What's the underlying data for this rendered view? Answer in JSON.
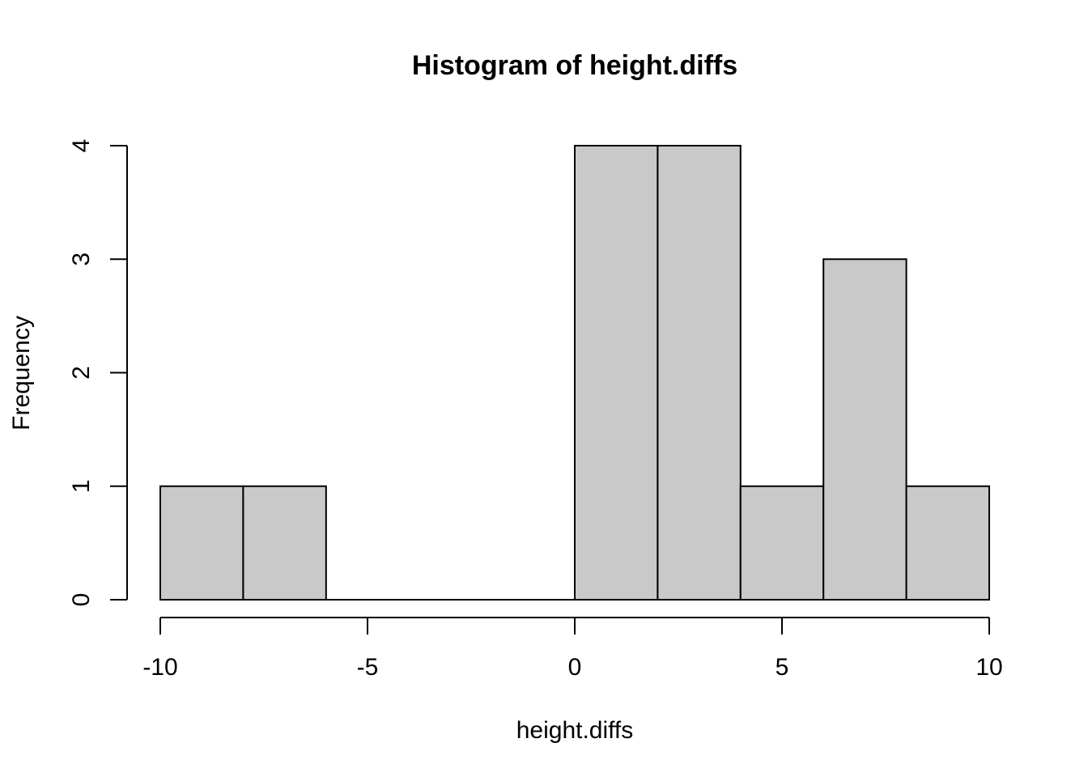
{
  "chart_data": {
    "type": "bar",
    "title": "Histogram of height.diffs",
    "xlabel": "height.diffs",
    "ylabel": "Frequency",
    "bins": [
      {
        "start": -10,
        "end": -8,
        "count": 1
      },
      {
        "start": -8,
        "end": -6,
        "count": 1
      },
      {
        "start": -6,
        "end": -4,
        "count": 0
      },
      {
        "start": -4,
        "end": -2,
        "count": 0
      },
      {
        "start": -2,
        "end": 0,
        "count": 0
      },
      {
        "start": 0,
        "end": 2,
        "count": 4
      },
      {
        "start": 2,
        "end": 4,
        "count": 4
      },
      {
        "start": 4,
        "end": 6,
        "count": 1
      },
      {
        "start": 6,
        "end": 8,
        "count": 3
      },
      {
        "start": 8,
        "end": 10,
        "count": 1
      }
    ],
    "xlim": [
      -10,
      10
    ],
    "ylim": [
      0,
      4
    ],
    "x_ticks": [
      -10,
      -5,
      0,
      5,
      10
    ],
    "x_tick_labels": [
      "-10",
      "-5",
      "0",
      "5",
      "10"
    ],
    "y_ticks": [
      0,
      1,
      2,
      3,
      4
    ],
    "y_tick_labels": [
      "0",
      "1",
      "2",
      "3",
      "4"
    ],
    "grid": false,
    "colors": {
      "bar_fill": "#c9c9c9",
      "bar_stroke": "#000000",
      "axis": "#000000",
      "background": "#ffffff"
    }
  }
}
